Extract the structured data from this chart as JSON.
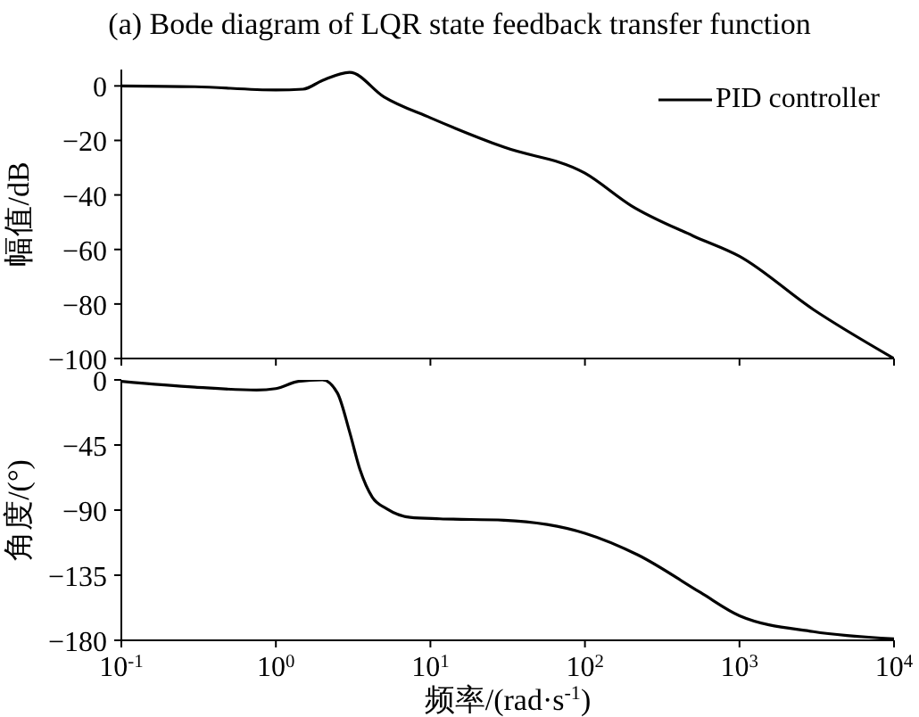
{
  "chart_data": [
    {
      "type": "line",
      "title": "(a) Bode diagram of LQR state feedback transfer function",
      "ylabel": "幅值/dB",
      "log": "x",
      "xlim": [
        0.1,
        10000
      ],
      "xticks": [
        {
          "value": 0.1,
          "label": null
        },
        {
          "value": 1,
          "label": null
        },
        {
          "value": 10,
          "label": null
        },
        {
          "value": 100,
          "label": null
        },
        {
          "value": 1000,
          "label": null
        },
        {
          "value": 10000,
          "label": null
        }
      ],
      "ylim": [
        -100,
        6
      ],
      "yticks": [
        -100,
        -80,
        -60,
        -40,
        -20,
        0
      ],
      "tick_labels": "y",
      "grid": false,
      "legend": "top right",
      "marker": "none",
      "line_style": "solid",
      "series": [
        {
          "name": "PID controller",
          "color": "#000000",
          "x": [
            0.1,
            0.3,
            1,
            1.5,
            2,
            3,
            5,
            10,
            30,
            100,
            200,
            500,
            1000,
            3000,
            10000
          ],
          "values": [
            0,
            -0.3,
            -1.5,
            -1.2,
            2,
            5,
            -4,
            -11.7,
            -22.5,
            -32,
            -44,
            -55,
            -62.5,
            -82,
            -100
          ]
        }
      ]
    },
    {
      "type": "line",
      "xlabel": "频率/(rad·s$^{-1}$)",
      "ylabel": "角度/(°)",
      "log": "x",
      "xlim": [
        0.1,
        10000
      ],
      "xticks": [
        {
          "value": 0.1,
          "label": "10$^{-1}$"
        },
        {
          "value": 1,
          "label": "10$^{0}$"
        },
        {
          "value": 10,
          "label": "10$^{1}$"
        },
        {
          "value": 100,
          "label": "10$^{2}$"
        },
        {
          "value": 1000,
          "label": "10$^{3}$"
        },
        {
          "value": 10000,
          "label": "10$^{4}$"
        }
      ],
      "ylim": [
        -180,
        0
      ],
      "yticks": [
        -180,
        -135,
        -90,
        -45,
        0
      ],
      "grid": false,
      "marker": "none",
      "line_style": "solid",
      "series": [
        {
          "color": "#000000",
          "x": [
            0.1,
            0.3,
            0.75,
            1,
            1.4,
            2,
            2.5,
            3,
            3.5,
            4.2,
            5.2,
            7.4,
            11.5,
            30,
            100,
            220,
            560,
            1000,
            3000,
            10000
          ],
          "values": [
            -1,
            -5,
            -7,
            -6,
            -1,
            0,
            -9,
            -36,
            -62,
            -81,
            -89,
            -95,
            -96,
            -97,
            -106,
            -121,
            -147,
            -163,
            -174,
            -179
          ]
        }
      ]
    }
  ]
}
